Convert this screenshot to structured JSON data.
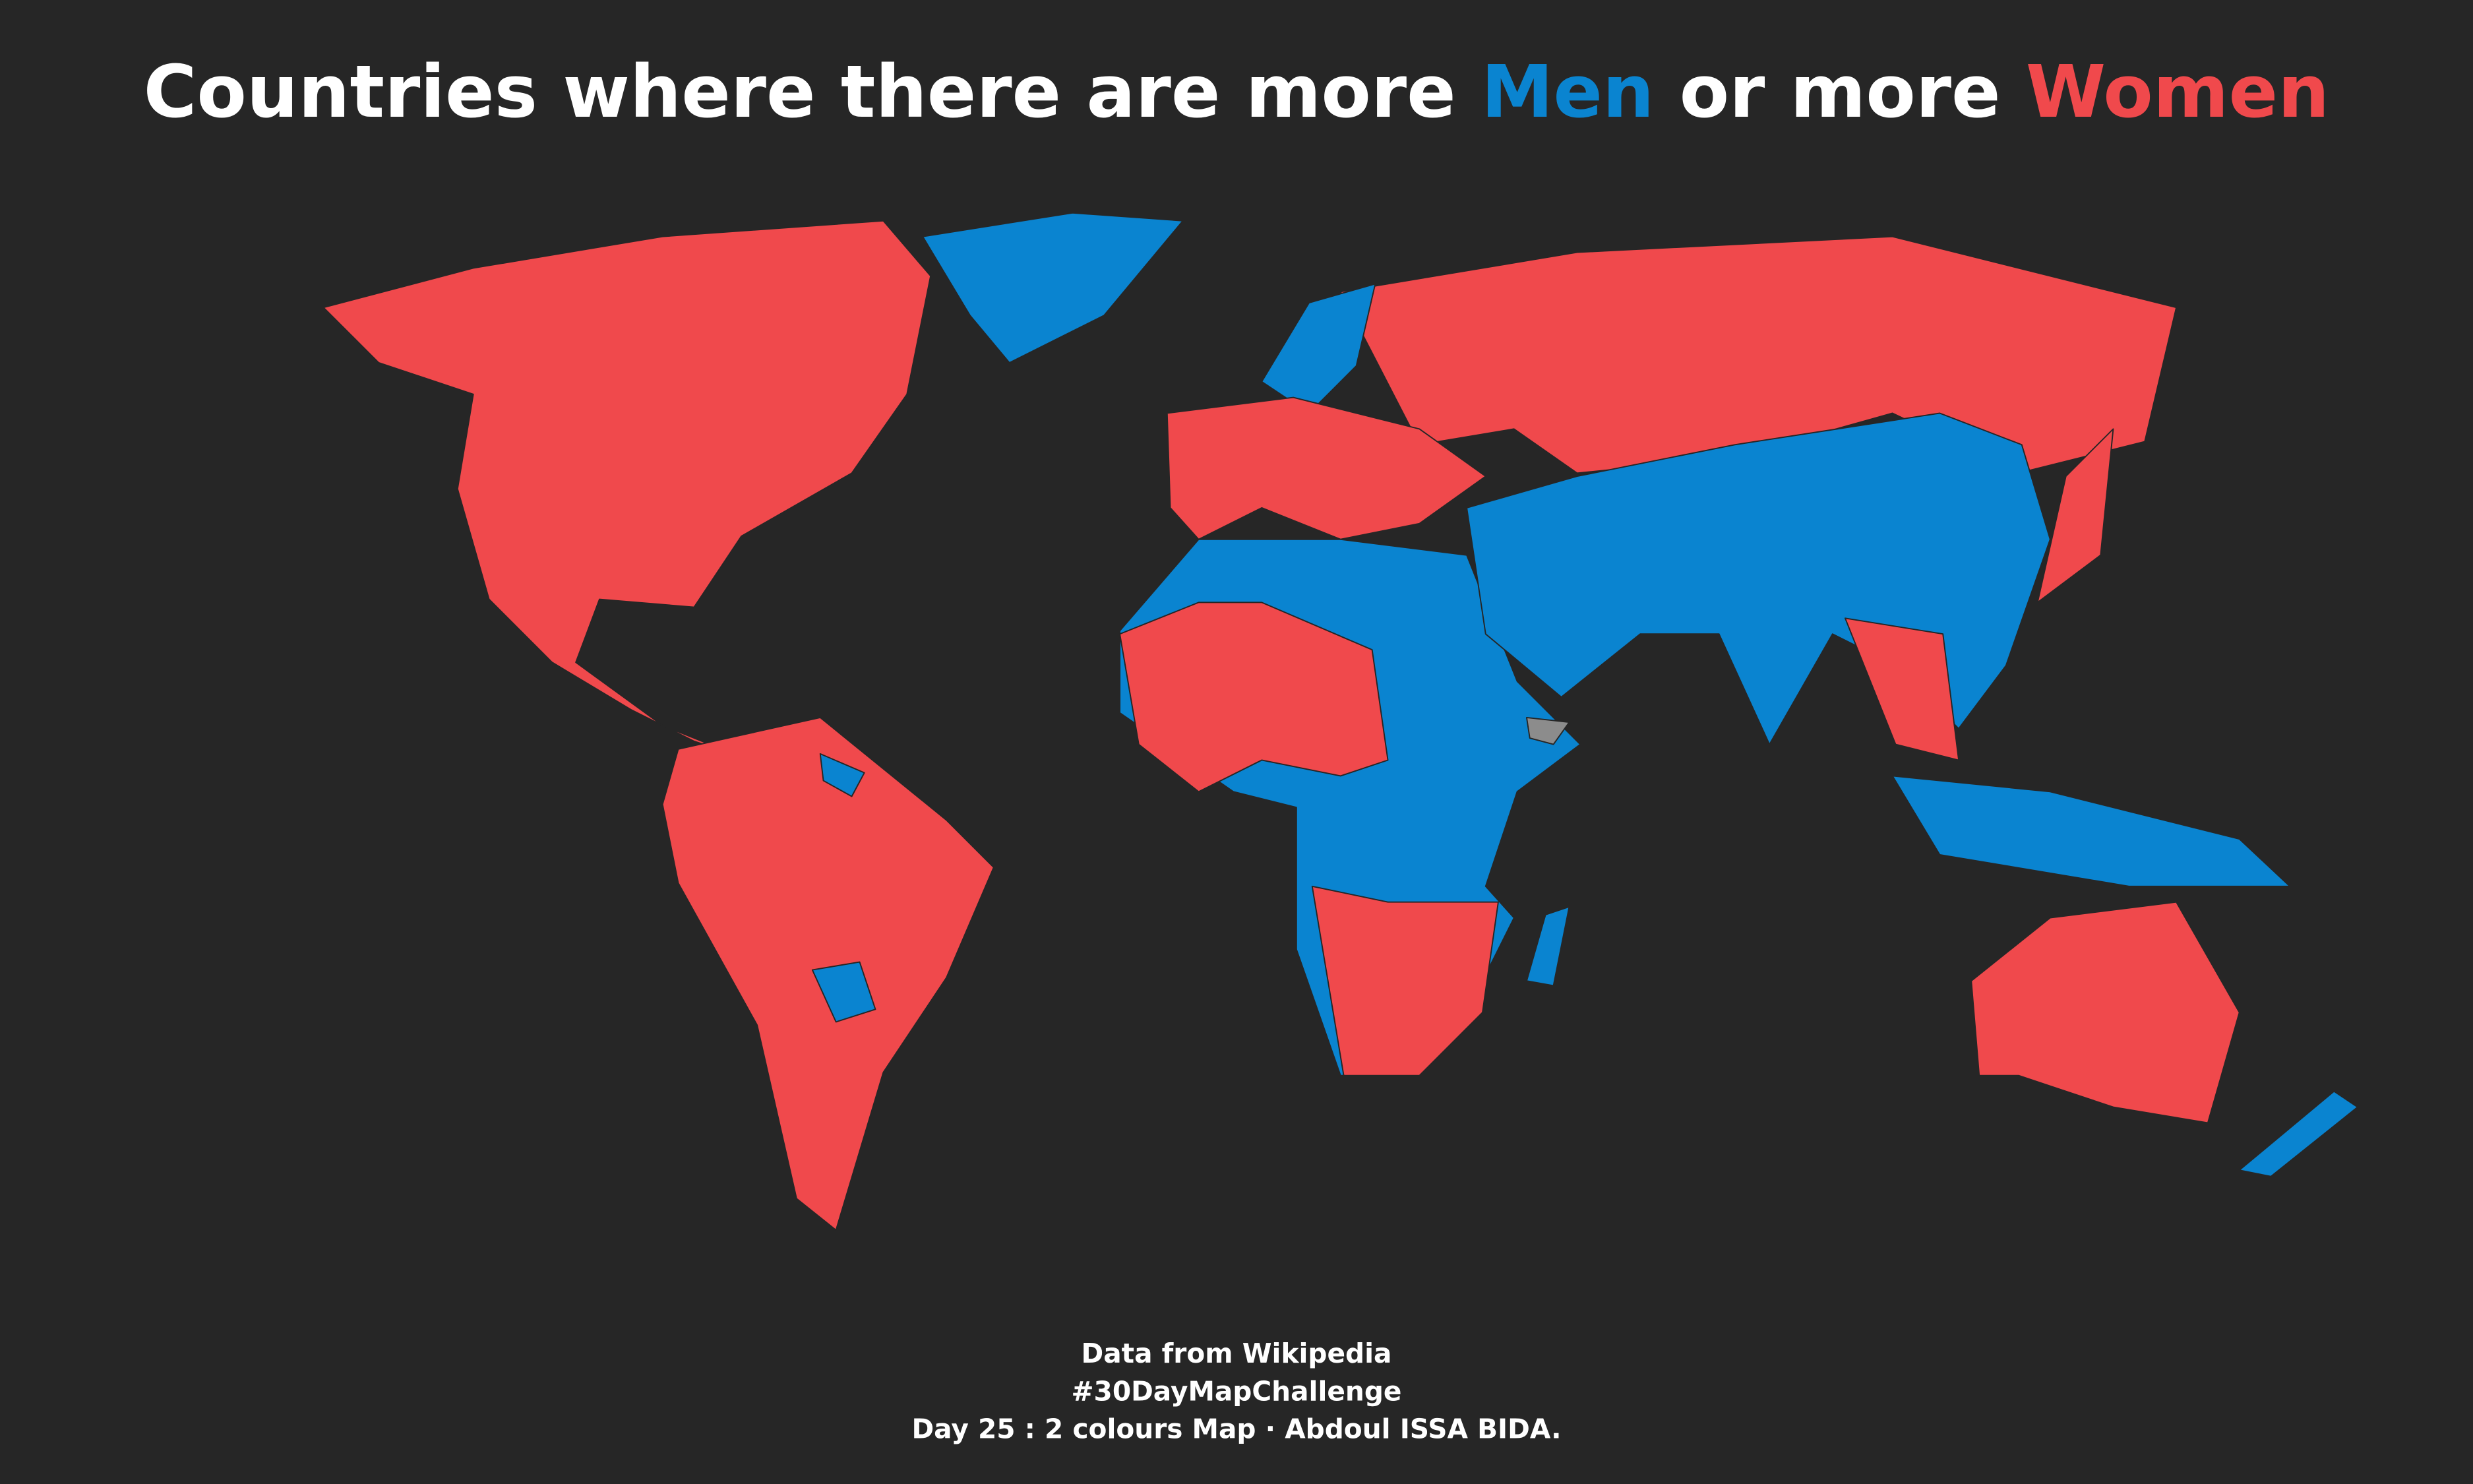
{
  "title": [
    "Countries where there are more",
    "Men",
    "or more",
    "Women"
  ],
  "colors": {
    "men": "#0a84d0",
    "women": "#f0494c",
    "no_data": "#8c8c8c",
    "background": "#262626"
  },
  "footer": [
    "Data from Wikipedia",
    "#30DayMapChallenge",
    "Day 25 : 2 colours Map · Abdoul ISSA BIDA."
  ]
}
